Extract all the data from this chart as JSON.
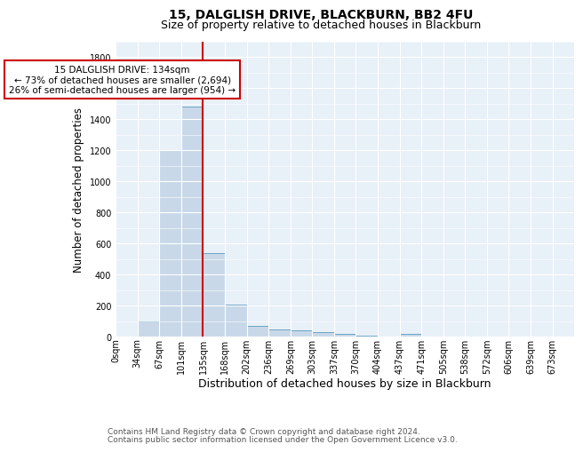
{
  "title1": "15, DALGLISH DRIVE, BLACKBURN, BB2 4FU",
  "title2": "Size of property relative to detached houses in Blackburn",
  "xlabel": "Distribution of detached houses by size in Blackburn",
  "ylabel": "Number of detached properties",
  "footnote1": "Contains HM Land Registry data © Crown copyright and database right 2024.",
  "footnote2": "Contains public sector information licensed under the Open Government Licence v3.0.",
  "bar_labels": [
    "0sqm",
    "34sqm",
    "67sqm",
    "101sqm",
    "135sqm",
    "168sqm",
    "202sqm",
    "236sqm",
    "269sqm",
    "303sqm",
    "337sqm",
    "370sqm",
    "404sqm",
    "437sqm",
    "471sqm",
    "505sqm",
    "538sqm",
    "572sqm",
    "606sqm",
    "639sqm",
    "673sqm"
  ],
  "bar_values": [
    0,
    95,
    1200,
    1480,
    535,
    205,
    70,
    48,
    40,
    28,
    15,
    8,
    0,
    15,
    0,
    0,
    0,
    0,
    0,
    0,
    0
  ],
  "bar_color": "#c8d8e8",
  "bar_edge_color": "#5a9abd",
  "vline_x": 4.0,
  "vline_color": "#cc0000",
  "annotation_text": "15 DALGLISH DRIVE: 134sqm\n← 73% of detached houses are smaller (2,694)\n26% of semi-detached houses are larger (954) →",
  "annotation_box_color": "#ffffff",
  "annotation_box_edge": "#cc0000",
  "ylim": [
    0,
    1900
  ],
  "yticks": [
    0,
    200,
    400,
    600,
    800,
    1000,
    1200,
    1400,
    1600,
    1800
  ],
  "bg_color": "#e8f0f8",
  "title_fontsize": 10,
  "subtitle_fontsize": 9,
  "xlabel_fontsize": 9,
  "ylabel_fontsize": 8.5,
  "tick_fontsize": 7,
  "footnote_fontsize": 6.5,
  "ann_fontsize": 7.5
}
